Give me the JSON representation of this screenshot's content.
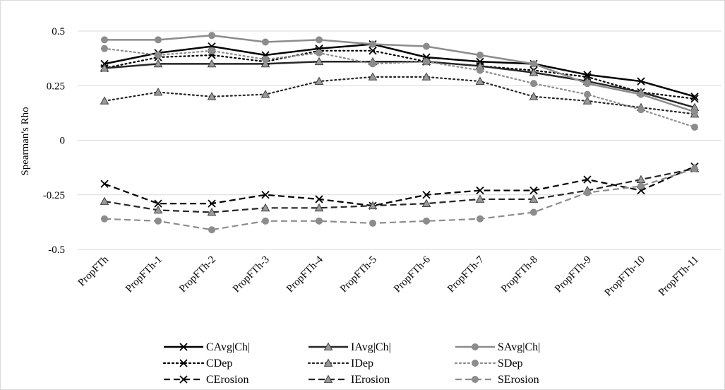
{
  "chart_data": {
    "type": "line",
    "title": "",
    "xlabel": "",
    "ylabel": "Spearman's Rho",
    "ylim": [
      -0.5,
      0.5
    ],
    "yticks": [
      0.5,
      0.25,
      0,
      -0.25,
      -0.5
    ],
    "ytick_labels": [
      "0.5",
      "0.25",
      "0",
      "-0.25",
      "-0.5"
    ],
    "grid": "horizontal",
    "legend_position": "bottom",
    "categories": [
      "PropFTh",
      "PropFTh-1",
      "PropFTh-2",
      "PropFTh-3",
      "PropFTh-4",
      "PropFTh-5",
      "PropFTh-6",
      "PropFTh-7",
      "PropFTh-8",
      "PropFTh-9",
      "PropFTh-10",
      "PropFTh-11"
    ],
    "series": [
      {
        "name": "CAvg|Ch|",
        "color": "#000000",
        "dash": "solid",
        "marker": "x",
        "values": [
          0.35,
          0.4,
          0.43,
          0.39,
          0.42,
          0.44,
          0.38,
          0.36,
          0.35,
          0.3,
          0.27,
          0.2
        ]
      },
      {
        "name": "CDep",
        "color": "#000000",
        "dash": "dot",
        "marker": "x",
        "values": [
          0.33,
          0.38,
          0.39,
          0.36,
          0.41,
          0.41,
          0.36,
          0.34,
          0.32,
          0.29,
          0.22,
          0.19
        ]
      },
      {
        "name": "CErosion",
        "color": "#000000",
        "dash": "dash",
        "marker": "x",
        "values": [
          -0.2,
          -0.29,
          -0.29,
          -0.25,
          -0.27,
          -0.3,
          -0.25,
          -0.23,
          -0.23,
          -0.18,
          -0.23,
          -0.12
        ]
      },
      {
        "name": "IAvg|Ch|",
        "color": "#262626",
        "dash": "solid",
        "marker": "triangle",
        "values": [
          0.33,
          0.35,
          0.35,
          0.35,
          0.36,
          0.36,
          0.36,
          0.34,
          0.31,
          0.27,
          0.22,
          0.15
        ]
      },
      {
        "name": "IDep",
        "color": "#262626",
        "dash": "dot",
        "marker": "triangle",
        "values": [
          0.18,
          0.22,
          0.2,
          0.21,
          0.27,
          0.29,
          0.29,
          0.27,
          0.2,
          0.18,
          0.15,
          0.12
        ]
      },
      {
        "name": "IErosion",
        "color": "#262626",
        "dash": "dash",
        "marker": "triangle",
        "values": [
          -0.28,
          -0.32,
          -0.33,
          -0.31,
          -0.31,
          -0.3,
          -0.29,
          -0.27,
          -0.27,
          -0.23,
          -0.18,
          -0.13
        ]
      },
      {
        "name": "SAvg|Ch|",
        "color": "#8c8c8c",
        "dash": "solid",
        "marker": "circle",
        "values": [
          0.46,
          0.46,
          0.48,
          0.45,
          0.46,
          0.44,
          0.43,
          0.39,
          0.35,
          0.26,
          0.21,
          0.13
        ]
      },
      {
        "name": "SDep",
        "color": "#8c8c8c",
        "dash": "dot",
        "marker": "circle",
        "values": [
          0.42,
          0.39,
          0.41,
          0.37,
          0.4,
          0.35,
          0.36,
          0.32,
          0.26,
          0.21,
          0.14,
          0.06
        ]
      },
      {
        "name": "SErosion",
        "color": "#8c8c8c",
        "dash": "dash",
        "marker": "circle",
        "values": [
          -0.36,
          -0.37,
          -0.41,
          -0.37,
          -0.37,
          -0.38,
          -0.37,
          -0.36,
          -0.33,
          -0.24,
          -0.21,
          -0.13
        ]
      }
    ]
  }
}
